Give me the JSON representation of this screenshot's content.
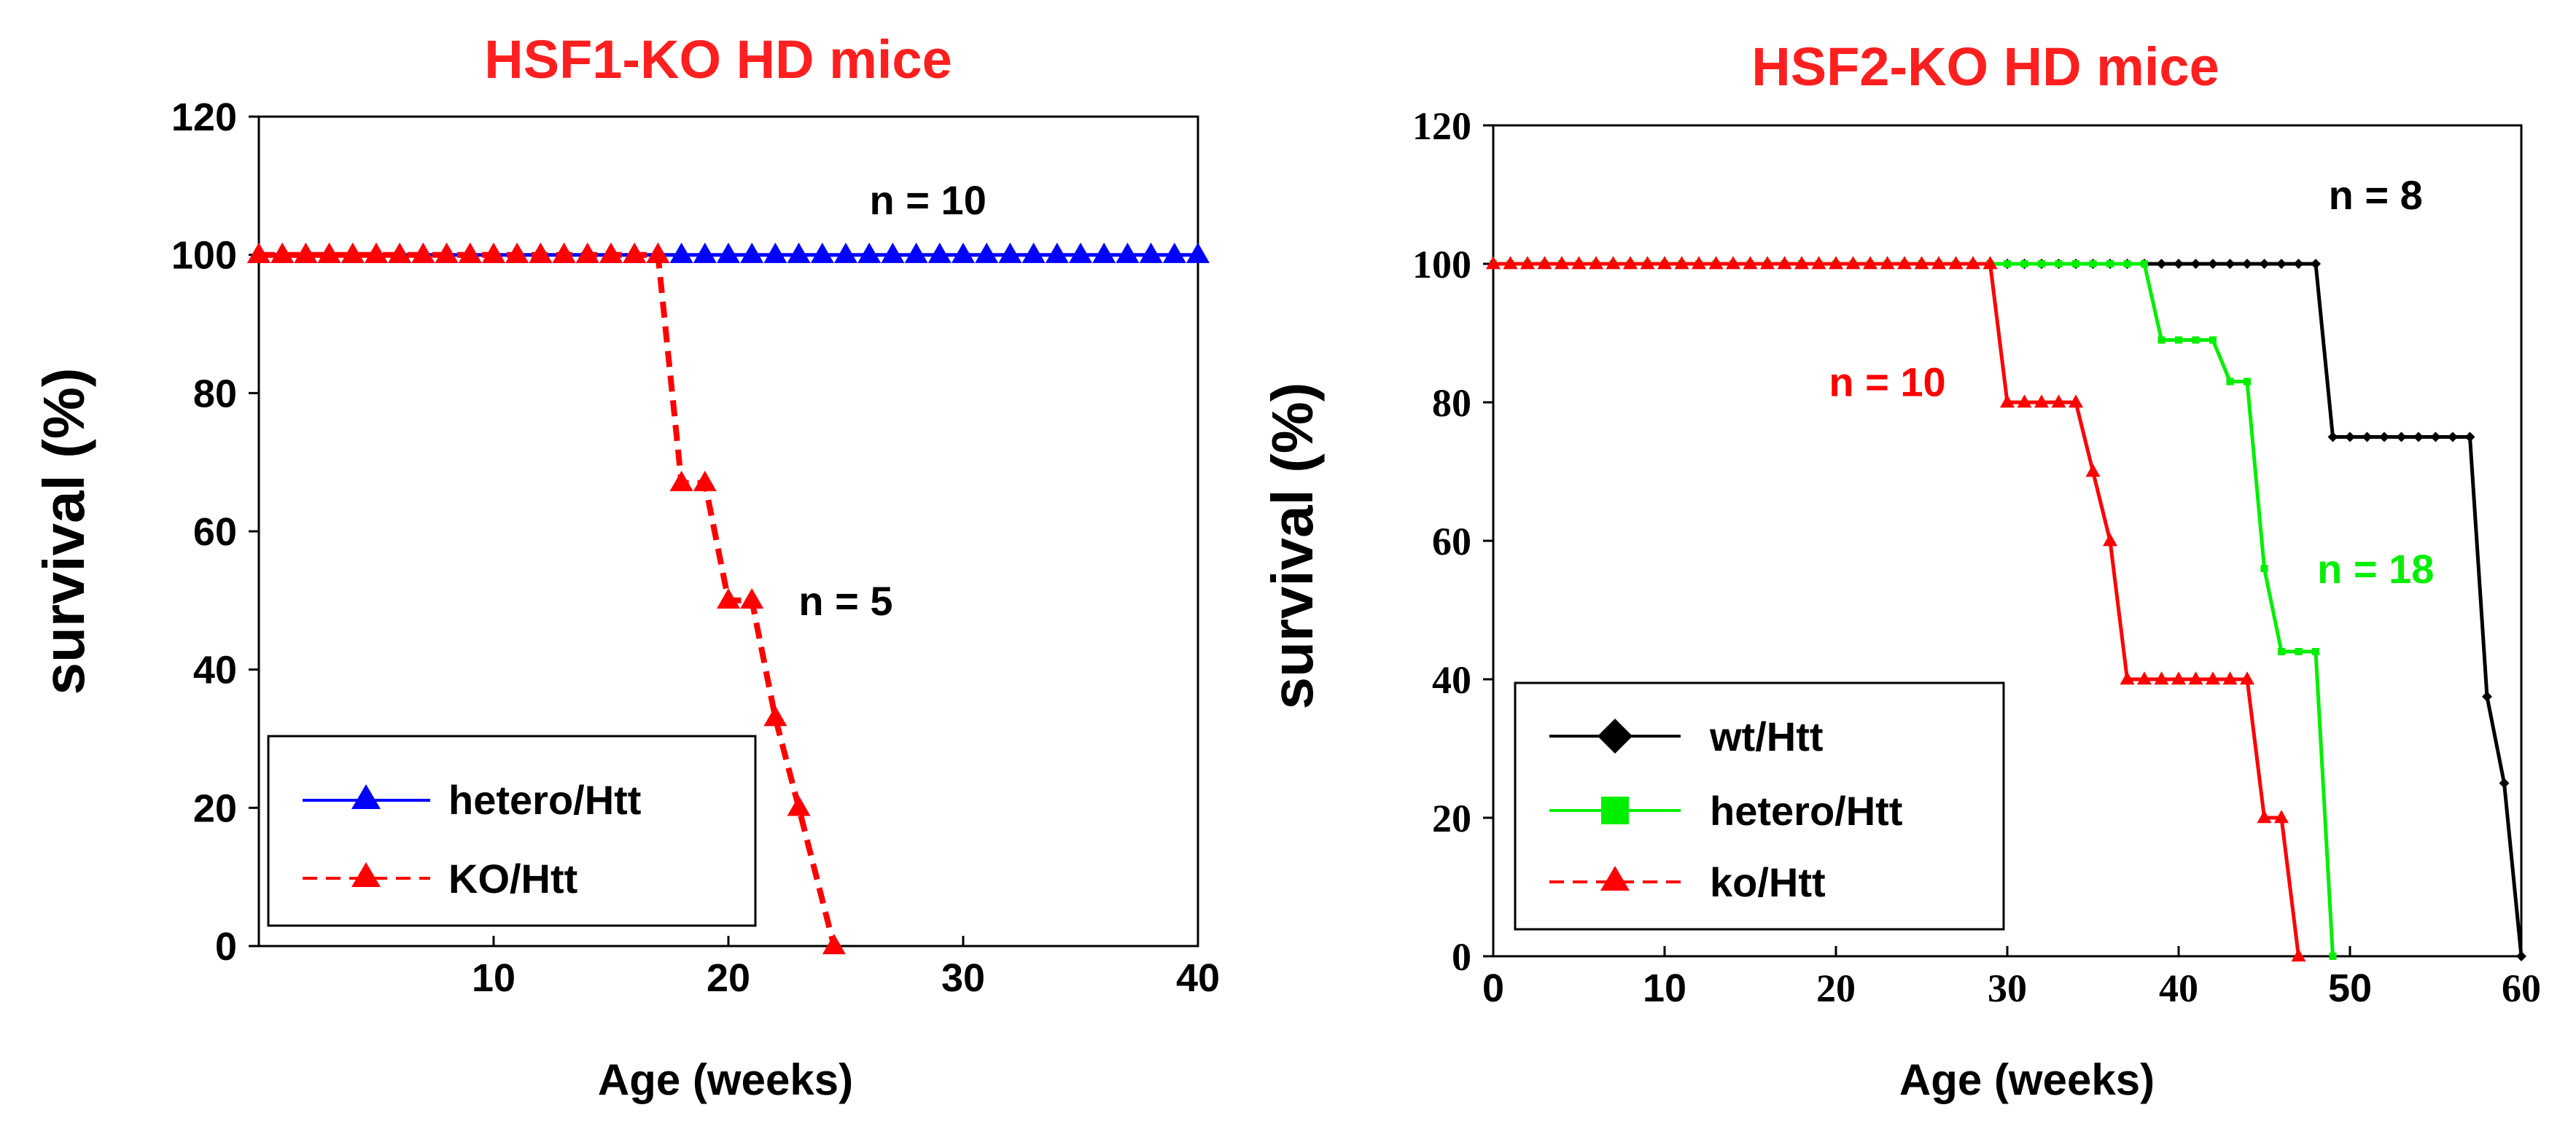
{
  "chart_data": [
    {
      "type": "line",
      "title": "HSF1-KO HD mice",
      "xlabel": "Age (weeks)",
      "ylabel": "survival (%)",
      "xlim": [
        0,
        40
      ],
      "ylim": [
        0,
        120
      ],
      "xticks": [
        "10",
        "20",
        "30",
        "40"
      ],
      "yticks": [
        "0",
        "20",
        "40",
        "60",
        "80",
        "100",
        "120"
      ],
      "legend_position": "bottom-left",
      "series": [
        {
          "name": "hetero/Htt",
          "color": "#0000ff",
          "style": "solid",
          "marker": "triangle",
          "x": [
            0,
            1,
            2,
            3,
            4,
            5,
            6,
            7,
            8,
            9,
            10,
            11,
            12,
            13,
            14,
            15,
            16,
            17,
            18,
            19,
            20,
            21,
            22,
            23,
            24,
            25,
            26,
            27,
            28,
            29,
            30,
            31,
            32,
            33,
            34,
            35,
            36,
            37,
            38,
            39,
            40
          ],
          "y": [
            100,
            100,
            100,
            100,
            100,
            100,
            100,
            100,
            100,
            100,
            100,
            100,
            100,
            100,
            100,
            100,
            100,
            100,
            100,
            100,
            100,
            100,
            100,
            100,
            100,
            100,
            100,
            100,
            100,
            100,
            100,
            100,
            100,
            100,
            100,
            100,
            100,
            100,
            100,
            100,
            100
          ]
        },
        {
          "name": "KO/Htt",
          "color": "#ff0000",
          "style": "dashed",
          "marker": "triangle",
          "x": [
            0,
            1,
            2,
            3,
            4,
            5,
            6,
            7,
            8,
            9,
            10,
            11,
            12,
            13,
            14,
            15,
            16,
            17,
            18,
            19,
            20,
            21,
            22,
            23,
            24.5
          ],
          "y": [
            100,
            100,
            100,
            100,
            100,
            100,
            100,
            100,
            100,
            100,
            100,
            100,
            100,
            100,
            100,
            100,
            100,
            100,
            67,
            67,
            50,
            50,
            33,
            20,
            0
          ]
        }
      ],
      "annotations": [
        {
          "text": "n = 10",
          "color": "#000000",
          "x": 28.5,
          "y": 108
        },
        {
          "text": "n = 5",
          "color": "#000000",
          "x": 25,
          "y": 50
        }
      ]
    },
    {
      "type": "line",
      "title": "HSF2-KO HD mice",
      "xlabel": "Age (weeks)",
      "ylabel": "survival (%)",
      "xlim": [
        0,
        60
      ],
      "ylim": [
        0,
        120
      ],
      "xticks": [
        "0",
        "10",
        "20",
        "30",
        "40",
        "50",
        "60"
      ],
      "yticks": [
        "0",
        "20",
        "40",
        "60",
        "80",
        "100",
        "120"
      ],
      "legend_position": "bottom-left",
      "series": [
        {
          "name": "wt/Htt",
          "color": "#000000",
          "style": "solid",
          "marker": "diamond",
          "x": [
            0,
            1,
            2,
            3,
            4,
            5,
            6,
            7,
            8,
            9,
            10,
            11,
            12,
            13,
            14,
            15,
            16,
            17,
            18,
            19,
            20,
            21,
            22,
            23,
            24,
            25,
            26,
            27,
            28,
            29,
            30,
            31,
            32,
            33,
            34,
            35,
            36,
            37,
            38,
            39,
            40,
            41,
            42,
            43,
            44,
            45,
            46,
            47,
            48,
            49,
            50,
            51,
            52,
            53,
            54,
            55,
            56,
            57,
            58,
            59,
            60
          ],
          "y": [
            100,
            100,
            100,
            100,
            100,
            100,
            100,
            100,
            100,
            100,
            100,
            100,
            100,
            100,
            100,
            100,
            100,
            100,
            100,
            100,
            100,
            100,
            100,
            100,
            100,
            100,
            100,
            100,
            100,
            100,
            100,
            100,
            100,
            100,
            100,
            100,
            100,
            100,
            100,
            100,
            100,
            100,
            100,
            100,
            100,
            100,
            100,
            100,
            100,
            75,
            75,
            75,
            75,
            75,
            75,
            75,
            75,
            75,
            37.5,
            25,
            0
          ]
        },
        {
          "name": "hetero/Htt",
          "color": "#00ee00",
          "style": "solid",
          "marker": "square",
          "x": [
            0,
            1,
            2,
            3,
            4,
            5,
            6,
            7,
            8,
            9,
            10,
            11,
            12,
            13,
            14,
            15,
            16,
            17,
            18,
            19,
            20,
            21,
            22,
            23,
            24,
            25,
            26,
            27,
            28,
            29,
            30,
            31,
            32,
            33,
            34,
            35,
            36,
            37,
            38,
            39,
            40,
            41,
            42,
            43,
            44,
            45,
            46,
            47,
            48,
            49
          ],
          "y": [
            100,
            100,
            100,
            100,
            100,
            100,
            100,
            100,
            100,
            100,
            100,
            100,
            100,
            100,
            100,
            100,
            100,
            100,
            100,
            100,
            100,
            100,
            100,
            100,
            100,
            100,
            100,
            100,
            100,
            100,
            100,
            100,
            100,
            100,
            100,
            100,
            100,
            100,
            100,
            89,
            89,
            89,
            89,
            83,
            83,
            56,
            44,
            44,
            44,
            0
          ]
        },
        {
          "name": "ko/Htt",
          "color": "#ff0000",
          "style": "solid",
          "marker": "triangle",
          "x": [
            0,
            1,
            2,
            3,
            4,
            5,
            6,
            7,
            8,
            9,
            10,
            11,
            12,
            13,
            14,
            15,
            16,
            17,
            18,
            19,
            20,
            21,
            22,
            23,
            24,
            25,
            26,
            27,
            28,
            29,
            30,
            31,
            32,
            33,
            34,
            35,
            36,
            37,
            38,
            39,
            40,
            41,
            42,
            43,
            44,
            45,
            46,
            47
          ],
          "y": [
            100,
            100,
            100,
            100,
            100,
            100,
            100,
            100,
            100,
            100,
            100,
            100,
            100,
            100,
            100,
            100,
            100,
            100,
            100,
            100,
            100,
            100,
            100,
            100,
            100,
            100,
            100,
            100,
            100,
            100,
            80,
            80,
            80,
            80,
            80,
            70,
            60,
            40,
            40,
            40,
            40,
            40,
            40,
            40,
            40,
            20,
            20,
            0
          ]
        }
      ],
      "annotations": [
        {
          "text": "n = 8",
          "color": "#000000",
          "x": 51.5,
          "y": 110
        },
        {
          "text": "n = 10",
          "color": "#ff0000",
          "x": 23,
          "y": 83
        },
        {
          "text": "n = 18",
          "color": "#00ee00",
          "x": 51.5,
          "y": 56
        }
      ]
    }
  ]
}
